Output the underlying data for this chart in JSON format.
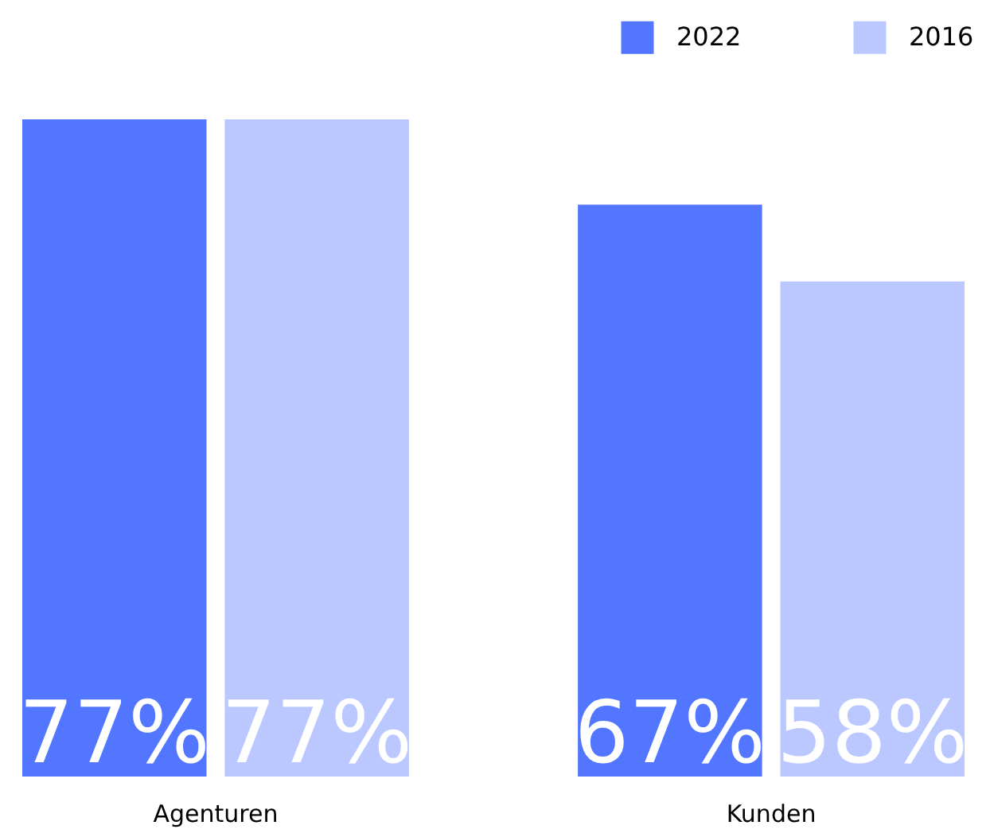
{
  "chart_data": {
    "type": "bar",
    "categories": [
      "Agenturen",
      "Kunden"
    ],
    "series": [
      {
        "name": "2022",
        "color": "#5276ff",
        "values": [
          77,
          67
        ],
        "value_labels": [
          "77%",
          "67%"
        ]
      },
      {
        "name": "2016",
        "color": "#bbc8ff",
        "values": [
          77,
          58
        ],
        "value_labels": [
          "77%",
          "58%"
        ]
      }
    ],
    "legend": "top right",
    "grid": false
  }
}
